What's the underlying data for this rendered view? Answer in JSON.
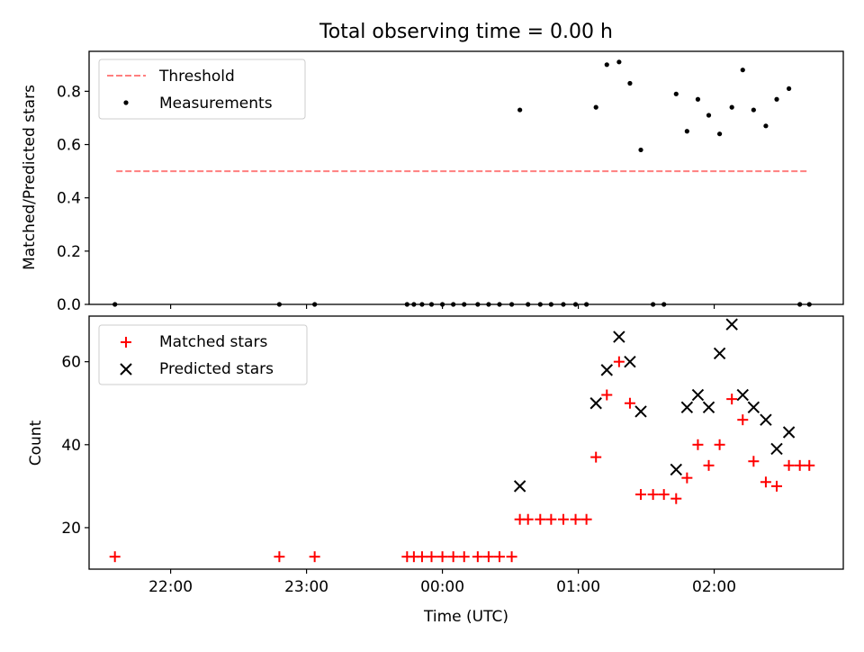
{
  "figure": {
    "title": "Total observing time = 0.00 h"
  },
  "chart_data": [
    {
      "type": "scatter",
      "ylabel": "Matched/Predicted stars",
      "xlim": [
        21.4,
        26.95
      ],
      "ylim": [
        0,
        0.95
      ],
      "yticks": [
        0.0,
        0.2,
        0.4,
        0.6,
        0.8
      ],
      "ytick_labels": [
        "0.0",
        "0.2",
        "0.4",
        "0.6",
        "0.8"
      ],
      "xticks": [
        22,
        23,
        24,
        25,
        26
      ],
      "grid": false,
      "legend": {
        "placement": "top-left",
        "entries": [
          {
            "name": "Threshold",
            "style": "dashed-line",
            "color": "#ff7f7f"
          },
          {
            "name": "Measurements",
            "style": "dot",
            "color": "#000000"
          }
        ]
      },
      "threshold": {
        "name": "Threshold",
        "value": 0.5,
        "x_range": [
          21.6,
          26.7
        ]
      },
      "series": [
        {
          "name": "Measurements",
          "marker": "dot",
          "color": "#000000",
          "x": [
            21.59,
            22.8,
            23.06,
            23.74,
            23.79,
            23.85,
            23.92,
            24.0,
            24.08,
            24.16,
            24.26,
            24.34,
            24.42,
            24.51,
            24.57,
            24.63,
            24.72,
            24.8,
            24.89,
            24.98,
            25.06,
            25.13,
            25.21,
            25.3,
            25.38,
            25.46,
            25.55,
            25.63,
            25.72,
            25.8,
            25.88,
            25.96,
            26.04,
            26.13,
            26.21,
            26.29,
            26.38,
            26.46,
            26.55,
            26.63,
            26.7
          ],
          "y": [
            0.0,
            0.0,
            0.0,
            0.0,
            0.0,
            0.0,
            0.0,
            0.0,
            0.0,
            0.0,
            0.0,
            0.0,
            0.0,
            0.0,
            0.73,
            0.0,
            0.0,
            0.0,
            0.0,
            0.0,
            0.0,
            0.74,
            0.9,
            0.91,
            0.83,
            0.58,
            0.0,
            0.0,
            0.79,
            0.65,
            0.77,
            0.71,
            0.64,
            0.74,
            0.88,
            0.73,
            0.67,
            0.77,
            0.81,
            0.0,
            0.0
          ]
        }
      ]
    },
    {
      "type": "scatter",
      "xlabel": "Time (UTC)",
      "ylabel": "Count",
      "xlim": [
        21.4,
        26.95
      ],
      "ylim": [
        10,
        71
      ],
      "yticks": [
        20,
        40,
        60
      ],
      "ytick_labels": [
        "20",
        "40",
        "60"
      ],
      "xticks": [
        22,
        23,
        24,
        25,
        26
      ],
      "xtick_labels": [
        "22:00",
        "23:00",
        "00:00",
        "01:00",
        "02:00"
      ],
      "grid": false,
      "legend": {
        "placement": "top-left",
        "entries": [
          {
            "name": "Matched stars",
            "style": "plus",
            "color": "#ff0000"
          },
          {
            "name": "Predicted stars",
            "style": "x",
            "color": "#000000"
          }
        ]
      },
      "series": [
        {
          "name": "Matched stars",
          "marker": "plus",
          "color": "#ff0000",
          "x": [
            21.59,
            22.8,
            23.06,
            23.74,
            23.79,
            23.85,
            23.92,
            24.0,
            24.08,
            24.16,
            24.26,
            24.34,
            24.42,
            24.51,
            24.57,
            24.63,
            24.72,
            24.8,
            24.89,
            24.98,
            25.06,
            25.13,
            25.21,
            25.3,
            25.38,
            25.46,
            25.55,
            25.63,
            25.72,
            25.8,
            25.88,
            25.96,
            26.04,
            26.13,
            26.21,
            26.29,
            26.38,
            26.46,
            26.55,
            26.63,
            26.7
          ],
          "y": [
            13,
            13,
            13,
            13,
            13,
            13,
            13,
            13,
            13,
            13,
            13,
            13,
            13,
            13,
            22,
            22,
            22,
            22,
            22,
            22,
            22,
            37,
            52,
            60,
            50,
            28,
            28,
            28,
            27,
            32,
            40,
            35,
            40,
            51,
            46,
            36,
            31,
            30,
            35,
            35,
            35
          ]
        },
        {
          "name": "Predicted stars",
          "marker": "x",
          "color": "#000000",
          "x": [
            24.57,
            25.13,
            25.21,
            25.3,
            25.38,
            25.46,
            25.72,
            25.8,
            25.88,
            25.96,
            26.04,
            26.13,
            26.21,
            26.29,
            26.38,
            26.46,
            26.55
          ],
          "y": [
            30,
            50,
            58,
            66,
            60,
            48,
            34,
            49,
            52,
            49,
            62,
            69,
            52,
            49,
            46,
            39,
            43
          ]
        }
      ]
    }
  ]
}
